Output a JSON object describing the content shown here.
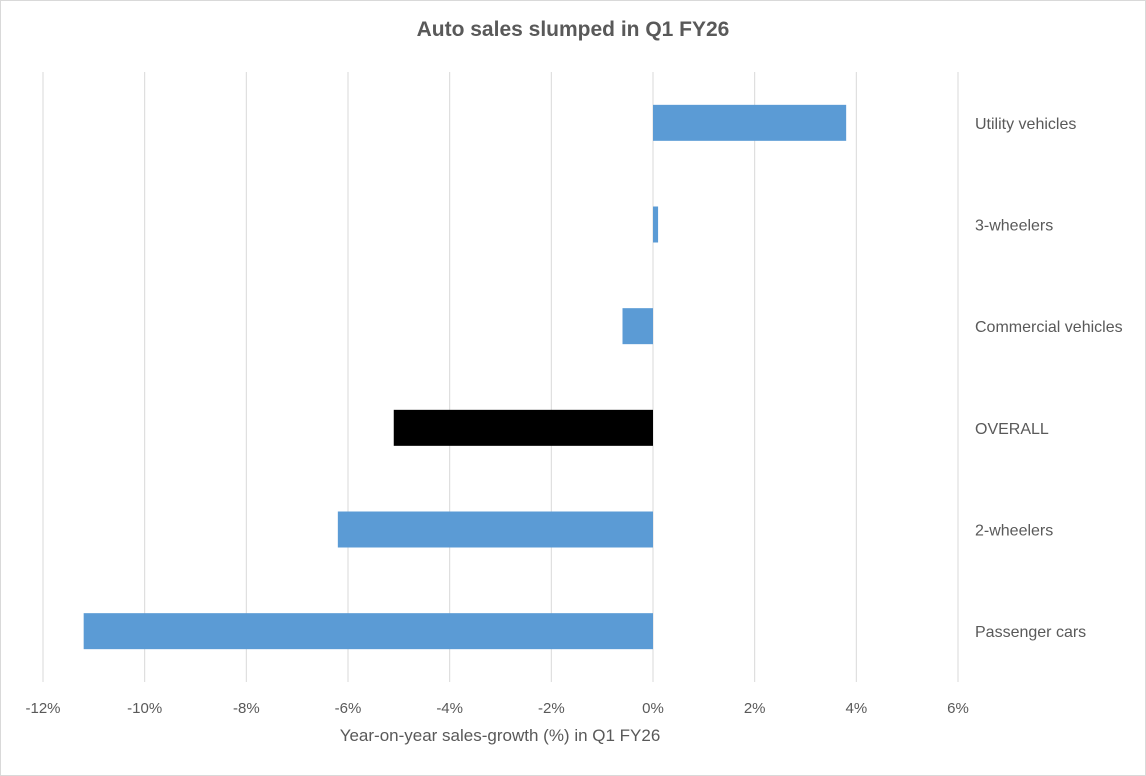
{
  "chart_data": {
    "type": "bar",
    "orientation": "horizontal",
    "title": "Auto sales slumped in Q1 FY26",
    "xlabel": "Year-on-year sales-growth (%) in Q1 FY26",
    "ylabel": "",
    "xlim": [
      -12,
      6
    ],
    "xticks": [
      -12,
      -10,
      -8,
      -6,
      -4,
      -2,
      0,
      2,
      4,
      6
    ],
    "xtick_labels": [
      "-12%",
      "-10%",
      "-8%",
      "-6%",
      "-4%",
      "-2%",
      "0%",
      "2%",
      "4%",
      "6%"
    ],
    "grid": true,
    "categories": [
      "Utility vehicles",
      "3-wheelers",
      "Commercial vehicles",
      "OVERALL",
      "2-wheelers",
      "Passenger cars"
    ],
    "values": [
      3.8,
      0.1,
      -0.6,
      -5.1,
      -6.2,
      -11.2
    ],
    "colors": [
      "#5b9bd5",
      "#5b9bd5",
      "#5b9bd5",
      "#000000",
      "#5b9bd5",
      "#5b9bd5"
    ]
  }
}
